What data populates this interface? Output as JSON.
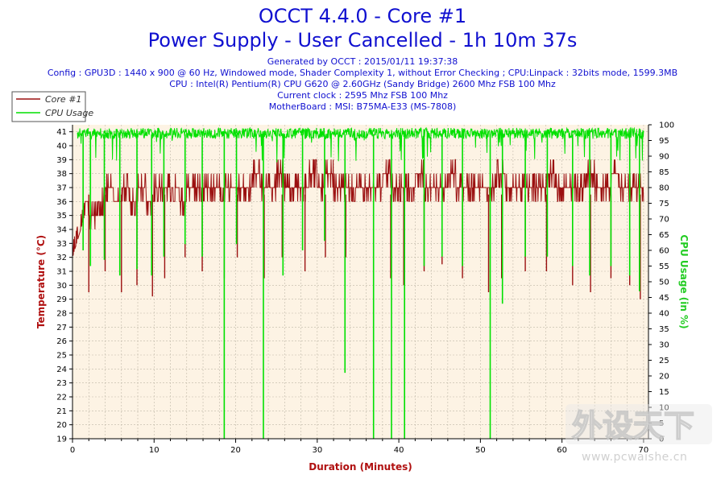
{
  "header": {
    "title_line1": "OCCT 4.4.0 - Core #1",
    "title_line2": "Power Supply - User Cancelled - 1h 10m 37s",
    "generated": "Generated by OCCT : 2015/01/11 19:37:38",
    "config": "Config : GPU3D : 1440 x 900 @ 60 Hz, Windowed mode, Shader Complexity 1, without Error Checking ; CPU:Linpack : 32bits mode, 1599.3MB",
    "cpu": "CPU : Intel(R) Pentium(R) CPU G620 @ 2.60GHz (Sandy Bridge) 2600 Mhz FSB 100 Mhz",
    "clock": "Current clock : 2595 Mhz FSB 100 Mhz",
    "motherboard": "MotherBoard : MSI: B75MA-E33 (MS-7808)"
  },
  "watermark": {
    "url": "www.pcwaishe.cn"
  },
  "colors": {
    "title": "#1010d0",
    "temperature": "#9b1010",
    "cpu_usage": "#00e000",
    "plot_background": "#fdf3e4",
    "axis_title": "#b01010"
  },
  "chart_data": {
    "type": "line",
    "xlabel": "Duration (Minutes)",
    "ylabel_left": "Temperature (°C)",
    "ylabel_right": "CPU Usage (in %)",
    "xlim": [
      0,
      70.6
    ],
    "ylim_left": [
      19,
      41.5
    ],
    "ylim_right": [
      0,
      100
    ],
    "x_ticks": [
      0,
      10,
      20,
      30,
      40,
      50,
      60,
      70
    ],
    "y_ticks_left": [
      19,
      20,
      21,
      22,
      23,
      24,
      25,
      26,
      27,
      28,
      29,
      30,
      31,
      32,
      33,
      34,
      35,
      36,
      37,
      38,
      39,
      40,
      41
    ],
    "y_ticks_right": [
      0,
      5,
      10,
      15,
      20,
      25,
      30,
      35,
      40,
      45,
      50,
      55,
      60,
      65,
      70,
      75,
      80,
      85,
      90,
      95,
      100
    ],
    "grid": true,
    "legend_position": "top-left",
    "series": [
      {
        "name": "Core #1",
        "axis": "left",
        "x": [
          0,
          0.5,
          1,
          1.5,
          2,
          3,
          4,
          5,
          6,
          7,
          8,
          9,
          10,
          11,
          12,
          13,
          14,
          15,
          16,
          17,
          18,
          19,
          20,
          21,
          22,
          23,
          24,
          25,
          26,
          27,
          28,
          29,
          30,
          31,
          32,
          33,
          34,
          35,
          36,
          37,
          38,
          39,
          40,
          41,
          42,
          43,
          44,
          45,
          46,
          47,
          48,
          49,
          50,
          51,
          52,
          53,
          54,
          55,
          56,
          57,
          58,
          59,
          60,
          61,
          62,
          63,
          64,
          65,
          66,
          67,
          68,
          69,
          70
        ],
        "values": [
          33,
          34,
          35,
          36,
          35,
          36,
          37,
          36,
          37,
          36,
          37,
          36,
          37,
          37,
          37,
          36,
          37,
          37,
          37,
          37,
          37,
          37,
          37,
          37,
          38,
          37,
          37,
          38,
          37,
          37,
          37,
          38,
          37,
          38,
          37,
          37,
          37,
          37,
          37,
          37,
          38,
          37,
          37,
          37,
          38,
          37,
          37,
          37,
          38,
          37,
          37,
          37,
          37,
          37,
          38,
          37,
          37,
          37,
          37,
          37,
          38,
          37,
          37,
          37,
          37,
          38,
          37,
          37,
          38,
          37,
          37,
          37,
          37
        ],
        "dips": [
          {
            "x": 2,
            "to": 29.5
          },
          {
            "x": 4,
            "to": 31
          },
          {
            "x": 6,
            "to": 29.5
          },
          {
            "x": 7.9,
            "to": 30
          },
          {
            "x": 9.8,
            "to": 29.2
          },
          {
            "x": 11.3,
            "to": 30.5
          },
          {
            "x": 13.8,
            "to": 32
          },
          {
            "x": 15.9,
            "to": 31
          },
          {
            "x": 18.6,
            "to": 30.5
          },
          {
            "x": 20.2,
            "to": 32
          },
          {
            "x": 23.5,
            "to": 30.5
          },
          {
            "x": 25.7,
            "to": 32
          },
          {
            "x": 28.5,
            "to": 31
          },
          {
            "x": 31,
            "to": 32
          },
          {
            "x": 33.5,
            "to": 32
          },
          {
            "x": 36.9,
            "to": 31
          },
          {
            "x": 39,
            "to": 30.5
          },
          {
            "x": 40.6,
            "to": 30
          },
          {
            "x": 43.1,
            "to": 31
          },
          {
            "x": 45.3,
            "to": 31.5
          },
          {
            "x": 47.8,
            "to": 30.5
          },
          {
            "x": 51,
            "to": 29.5
          },
          {
            "x": 52.6,
            "to": 30.5
          },
          {
            "x": 55.5,
            "to": 31
          },
          {
            "x": 58.1,
            "to": 31
          },
          {
            "x": 61.3,
            "to": 30
          },
          {
            "x": 63.5,
            "to": 29.5
          },
          {
            "x": 66,
            "to": 30.5
          },
          {
            "x": 68.3,
            "to": 30
          },
          {
            "x": 69.6,
            "to": 29
          }
        ]
      },
      {
        "name": "CPU Usage",
        "axis": "right",
        "x": [
          0,
          70
        ],
        "values": [
          99,
          99
        ],
        "dips": [
          {
            "x": 1.3,
            "to": 60
          },
          {
            "x": 2.2,
            "to": 55
          },
          {
            "x": 3.9,
            "to": 57
          },
          {
            "x": 5.8,
            "to": 52
          },
          {
            "x": 7.9,
            "to": 54
          },
          {
            "x": 9.7,
            "to": 52
          },
          {
            "x": 11.2,
            "to": 58
          },
          {
            "x": 13.8,
            "to": 62
          },
          {
            "x": 15.9,
            "to": 58
          },
          {
            "x": 18.6,
            "to": 0
          },
          {
            "x": 20.1,
            "to": 62
          },
          {
            "x": 23.4,
            "to": 0
          },
          {
            "x": 25.8,
            "to": 52
          },
          {
            "x": 28.2,
            "to": 60
          },
          {
            "x": 30.9,
            "to": 63
          },
          {
            "x": 33.4,
            "to": 21
          },
          {
            "x": 36.9,
            "to": 0
          },
          {
            "x": 39.1,
            "to": 0
          },
          {
            "x": 40.7,
            "to": 0
          },
          {
            "x": 43.1,
            "to": 55
          },
          {
            "x": 45.3,
            "to": 58
          },
          {
            "x": 47.8,
            "to": 55
          },
          {
            "x": 51.2,
            "to": 0
          },
          {
            "x": 52.7,
            "to": 43
          },
          {
            "x": 55.5,
            "to": 58
          },
          {
            "x": 58.2,
            "to": 58
          },
          {
            "x": 61.3,
            "to": 55
          },
          {
            "x": 63.4,
            "to": 52
          },
          {
            "x": 66,
            "to": 55
          },
          {
            "x": 68.3,
            "to": 52
          },
          {
            "x": 69.5,
            "to": 47
          }
        ]
      }
    ]
  }
}
